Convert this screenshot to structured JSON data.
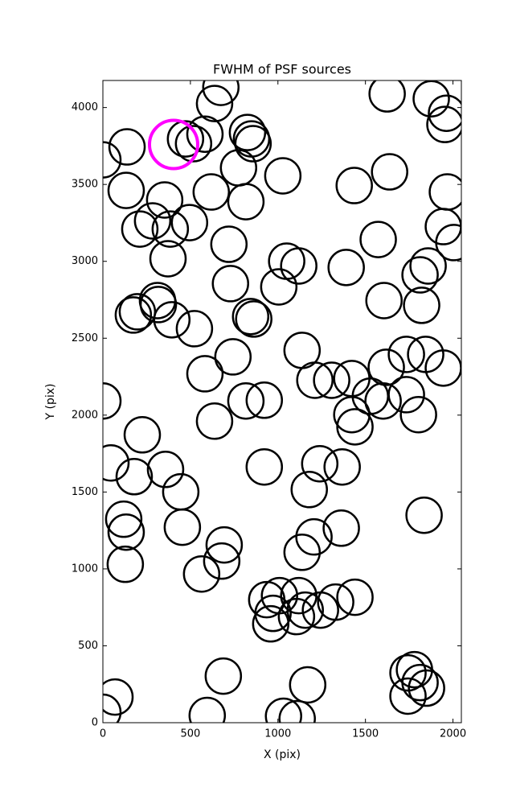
{
  "chart_data": {
    "type": "scatter",
    "title": "FWHM of PSF sources",
    "x_label": "X (pix)",
    "y_label": "Y (pix)",
    "xlim": [
      0,
      2048
    ],
    "ylim": [
      0,
      4176
    ],
    "xticks": [
      0,
      500,
      1000,
      1500,
      2000
    ],
    "yticks": [
      0,
      500,
      1000,
      1500,
      2000,
      2500,
      3000,
      3500,
      4000
    ],
    "series": [
      {
        "color": "#000000",
        "x": [
          0,
          138,
          133,
          472,
          583,
          518,
          638,
          674,
          826,
          849,
          858,
          775,
          817,
          1028,
          1436,
          1638,
          1624,
          1876,
          1963,
          1954,
          1968,
          1945,
          2005,
          1858,
          1812,
          1821,
          1606,
          1573,
          1390,
          1119,
          1050,
          1005,
          720,
          619,
          495,
          353,
          385,
          211,
          284,
          372,
          729,
          312,
          317,
          197,
          174,
          394,
          523,
          844,
          862,
          743,
          583,
          817,
          922,
          638,
          225,
          0,
          46,
          179,
          358,
          445,
          454,
          119,
          133,
          128,
          693,
          679,
          564,
          688,
          596,
          0,
          69,
          922,
          1179,
          1239,
          1367,
          1206,
          1138,
          1362,
          1138,
          1211,
          1307,
          1422,
          1528,
          1601,
          1619,
          1734,
          1844,
          1945,
          1734,
          1803,
          1422,
          1440,
          1835,
          936,
          1009,
          972,
          959,
          1119,
          1156,
          1106,
          1243,
          1330,
          1440,
          1032,
          1110,
          1170,
          1743,
          1780,
          1743,
          1812,
          1849
        ],
        "y": [
          3660,
          3744,
          3461,
          3796,
          3827,
          3765,
          4026,
          4131,
          3838,
          3796,
          3765,
          3608,
          3388,
          3556,
          3493,
          3582,
          4089,
          4057,
          3963,
          3890,
          3451,
          3226,
          3122,
          2970,
          2912,
          2714,
          2745,
          3142,
          2960,
          2970,
          3001,
          2834,
          3111,
          3451,
          3252,
          3399,
          3210,
          3210,
          3263,
          3017,
          2855,
          2745,
          2719,
          2672,
          2651,
          2620,
          2562,
          2641,
          2625,
          2379,
          2269,
          2092,
          2097,
          1961,
          1872,
          2092,
          1689,
          1600,
          1647,
          1501,
          1271,
          1323,
          1239,
          1030,
          1156,
          1051,
          967,
          303,
          47,
          68,
          167,
          1663,
          1516,
          1684,
          1663,
          1208,
          1108,
          1265,
          2421,
          2227,
          2227,
          2238,
          2123,
          2092,
          2311,
          2395,
          2395,
          2306,
          2133,
          2003,
          2003,
          1924,
          1349,
          800,
          826,
          711,
          643,
          826,
          732,
          690,
          732,
          784,
          816,
          42,
          26,
          246,
          324,
          345,
          173,
          261,
          225
        ]
      },
      {
        "color": "#ff00ff",
        "x": [
          404
        ],
        "y": [
          3760
        ]
      }
    ]
  }
}
